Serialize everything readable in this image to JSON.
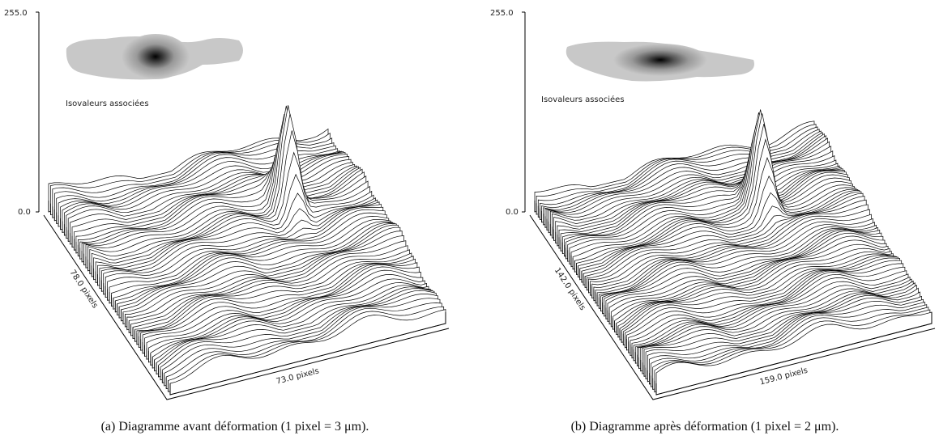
{
  "panels": [
    {
      "zmax": "255.0",
      "zmin": "0.0",
      "inset_label": "Isovaleurs associées",
      "left_axis": "78.0 pixels",
      "right_axis": "73.0 pixels",
      "caption": "(a) Diagramme avant déformation (1 pixel = 3 μm)."
    },
    {
      "zmax": "255.0",
      "zmin": "0.0",
      "inset_label": "Isovaleurs associées",
      "left_axis": "142.0 pixels",
      "right_axis": "159.0 pixels",
      "caption": "(b) Diagramme après déformation (1 pixel = 2 μm)."
    }
  ]
}
